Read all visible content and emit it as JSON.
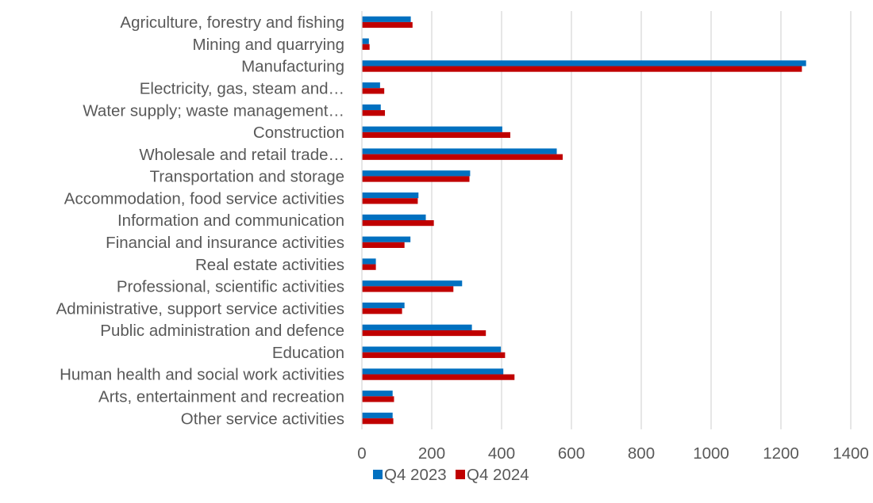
{
  "chart_data": {
    "type": "bar",
    "orientation": "horizontal",
    "categories": [
      "Agriculture, forestry and fishing",
      "Mining and quarrying",
      "Manufacturing",
      "Electricity, gas, steam and…",
      "Water supply; waste management…",
      "Construction",
      "Wholesale and retail trade…",
      "Transportation and storage",
      "Accommodation, food service activities",
      "Information and communication",
      "Financial and insurance activities",
      "Real estate activities",
      "Professional, scientific activities",
      "Administrative, support service activities",
      "Public administration and defence",
      "Education",
      "Human health and social work activities",
      "Arts, entertainment and recreation",
      "Other service activities"
    ],
    "series": [
      {
        "name": "Q4 2023",
        "color": "#0070C0",
        "values": [
          140,
          20,
          1272,
          52,
          54,
          402,
          558,
          310,
          162,
          183,
          139,
          40,
          287,
          122,
          315,
          398,
          405,
          88,
          88
        ]
      },
      {
        "name": "Q4 2024",
        "color": "#C00000",
        "values": [
          145,
          22,
          1260,
          64,
          66,
          425,
          575,
          308,
          160,
          206,
          122,
          40,
          262,
          115,
          355,
          410,
          437,
          92,
          90
        ]
      }
    ],
    "xlim": [
      0,
      1400
    ],
    "xticks": [
      "0",
      "200",
      "400",
      "600",
      "800",
      "1000",
      "1200",
      "1400"
    ],
    "grid": "vertical",
    "legend": "bottom",
    "title": "",
    "xlabel": "",
    "ylabel": ""
  }
}
